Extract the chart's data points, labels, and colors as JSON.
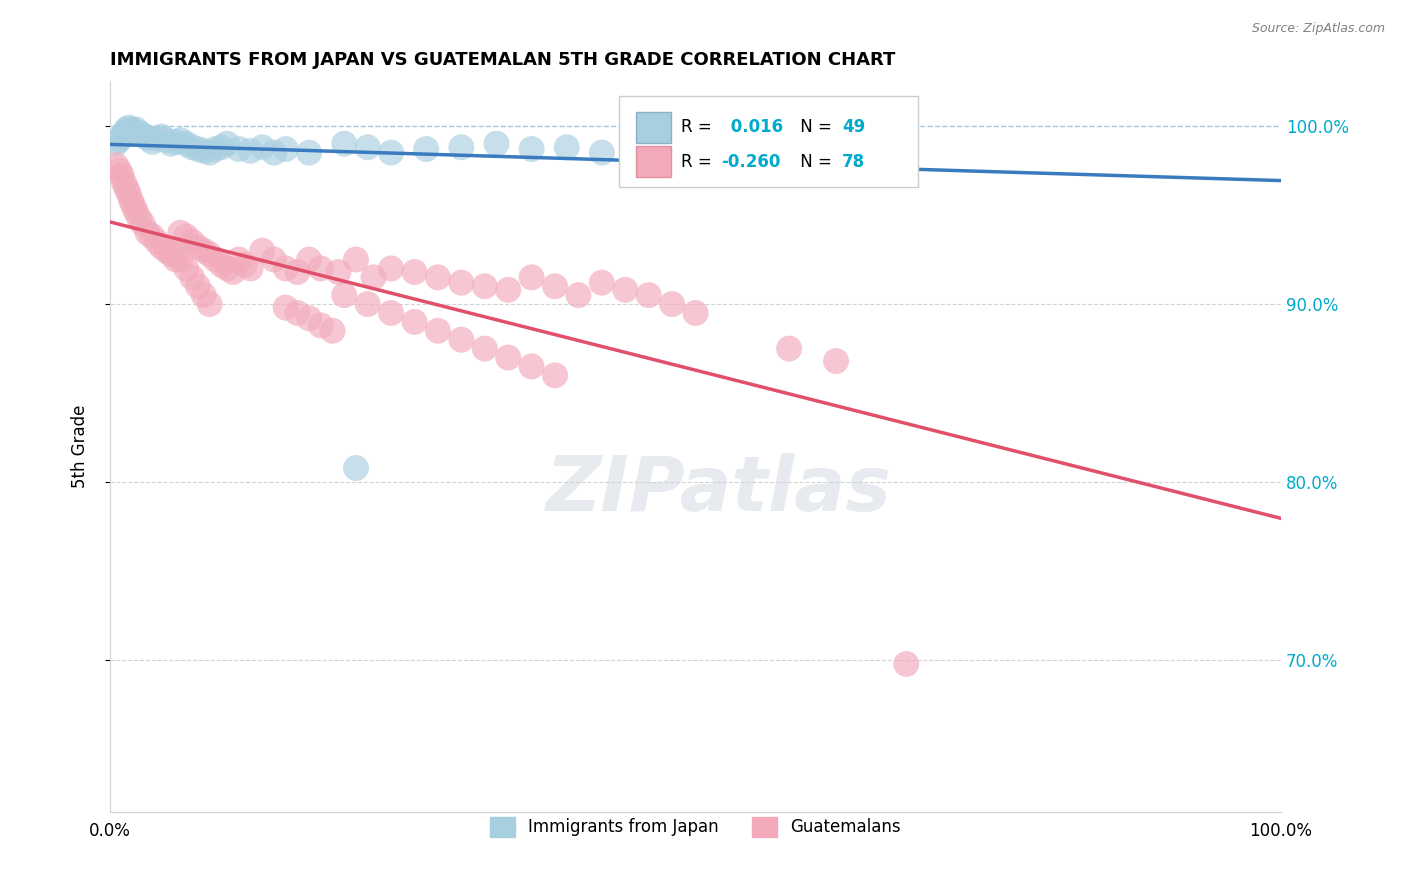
{
  "title": "IMMIGRANTS FROM JAPAN VS GUATEMALAN 5TH GRADE CORRELATION CHART",
  "source": "Source: ZipAtlas.com",
  "ylabel": "5th Grade",
  "xlim": [
    0.0,
    1.0
  ],
  "ylim": [
    0.615,
    1.025
  ],
  "yticks": [
    0.7,
    0.8,
    0.9,
    1.0
  ],
  "ytick_labels": [
    "70.0%",
    "80.0%",
    "90.0%",
    "100.0%"
  ],
  "legend_japan_r": "0.016",
  "legend_japan_n": "49",
  "legend_guate_r": "-0.260",
  "legend_guate_n": "78",
  "japan_color": "#a8cfe0",
  "guate_color": "#f2aabb",
  "japan_line_color": "#3a7abf",
  "guate_line_color": "#e0506a",
  "right_label_color": "#00aacc",
  "watermark": "ZIPatlas",
  "japan_x": [
    0.005,
    0.008,
    0.01,
    0.012,
    0.014,
    0.016,
    0.018,
    0.02,
    0.022,
    0.025,
    0.027,
    0.03,
    0.033,
    0.036,
    0.04,
    0.044,
    0.048,
    0.052,
    0.056,
    0.06,
    0.065,
    0.07,
    0.075,
    0.08,
    0.085,
    0.09,
    0.095,
    0.1,
    0.11,
    0.12,
    0.13,
    0.14,
    0.15,
    0.17,
    0.2,
    0.22,
    0.24,
    0.27,
    0.3,
    0.33,
    0.36,
    0.39,
    0.42,
    0.45,
    0.49,
    0.53,
    0.57,
    0.62,
    0.21
  ],
  "japan_y": [
    0.99,
    0.992,
    0.994,
    0.996,
    0.998,
    0.999,
    0.998,
    0.997,
    0.998,
    0.996,
    0.995,
    0.994,
    0.993,
    0.991,
    0.993,
    0.994,
    0.992,
    0.99,
    0.991,
    0.992,
    0.99,
    0.988,
    0.987,
    0.986,
    0.985,
    0.987,
    0.988,
    0.99,
    0.987,
    0.986,
    0.988,
    0.985,
    0.987,
    0.985,
    0.99,
    0.988,
    0.985,
    0.987,
    0.988,
    0.99,
    0.987,
    0.988,
    0.985,
    0.988,
    0.99,
    0.988,
    0.985,
    0.987,
    0.808
  ],
  "guate_x": [
    0.005,
    0.008,
    0.01,
    0.012,
    0.014,
    0.016,
    0.018,
    0.02,
    0.022,
    0.025,
    0.028,
    0.032,
    0.036,
    0.04,
    0.044,
    0.048,
    0.052,
    0.056,
    0.06,
    0.065,
    0.07,
    0.075,
    0.08,
    0.085,
    0.09,
    0.095,
    0.1,
    0.105,
    0.11,
    0.115,
    0.12,
    0.13,
    0.14,
    0.15,
    0.16,
    0.17,
    0.18,
    0.195,
    0.21,
    0.225,
    0.24,
    0.26,
    0.28,
    0.3,
    0.32,
    0.34,
    0.36,
    0.38,
    0.4,
    0.42,
    0.44,
    0.46,
    0.48,
    0.5,
    0.15,
    0.16,
    0.17,
    0.18,
    0.19,
    0.2,
    0.22,
    0.24,
    0.26,
    0.28,
    0.3,
    0.32,
    0.34,
    0.36,
    0.38,
    0.06,
    0.065,
    0.07,
    0.075,
    0.08,
    0.085,
    0.58,
    0.62,
    0.68
  ],
  "guate_y": [
    0.978,
    0.975,
    0.972,
    0.968,
    0.965,
    0.962,
    0.958,
    0.955,
    0.952,
    0.948,
    0.945,
    0.94,
    0.938,
    0.935,
    0.932,
    0.93,
    0.928,
    0.925,
    0.94,
    0.938,
    0.935,
    0.932,
    0.93,
    0.928,
    0.925,
    0.922,
    0.92,
    0.918,
    0.925,
    0.922,
    0.92,
    0.93,
    0.925,
    0.92,
    0.918,
    0.925,
    0.92,
    0.918,
    0.925,
    0.915,
    0.92,
    0.918,
    0.915,
    0.912,
    0.91,
    0.908,
    0.915,
    0.91,
    0.905,
    0.912,
    0.908,
    0.905,
    0.9,
    0.895,
    0.898,
    0.895,
    0.892,
    0.888,
    0.885,
    0.905,
    0.9,
    0.895,
    0.89,
    0.885,
    0.88,
    0.875,
    0.87,
    0.865,
    0.86,
    0.925,
    0.92,
    0.915,
    0.91,
    0.905,
    0.9,
    0.875,
    0.868,
    0.698
  ]
}
